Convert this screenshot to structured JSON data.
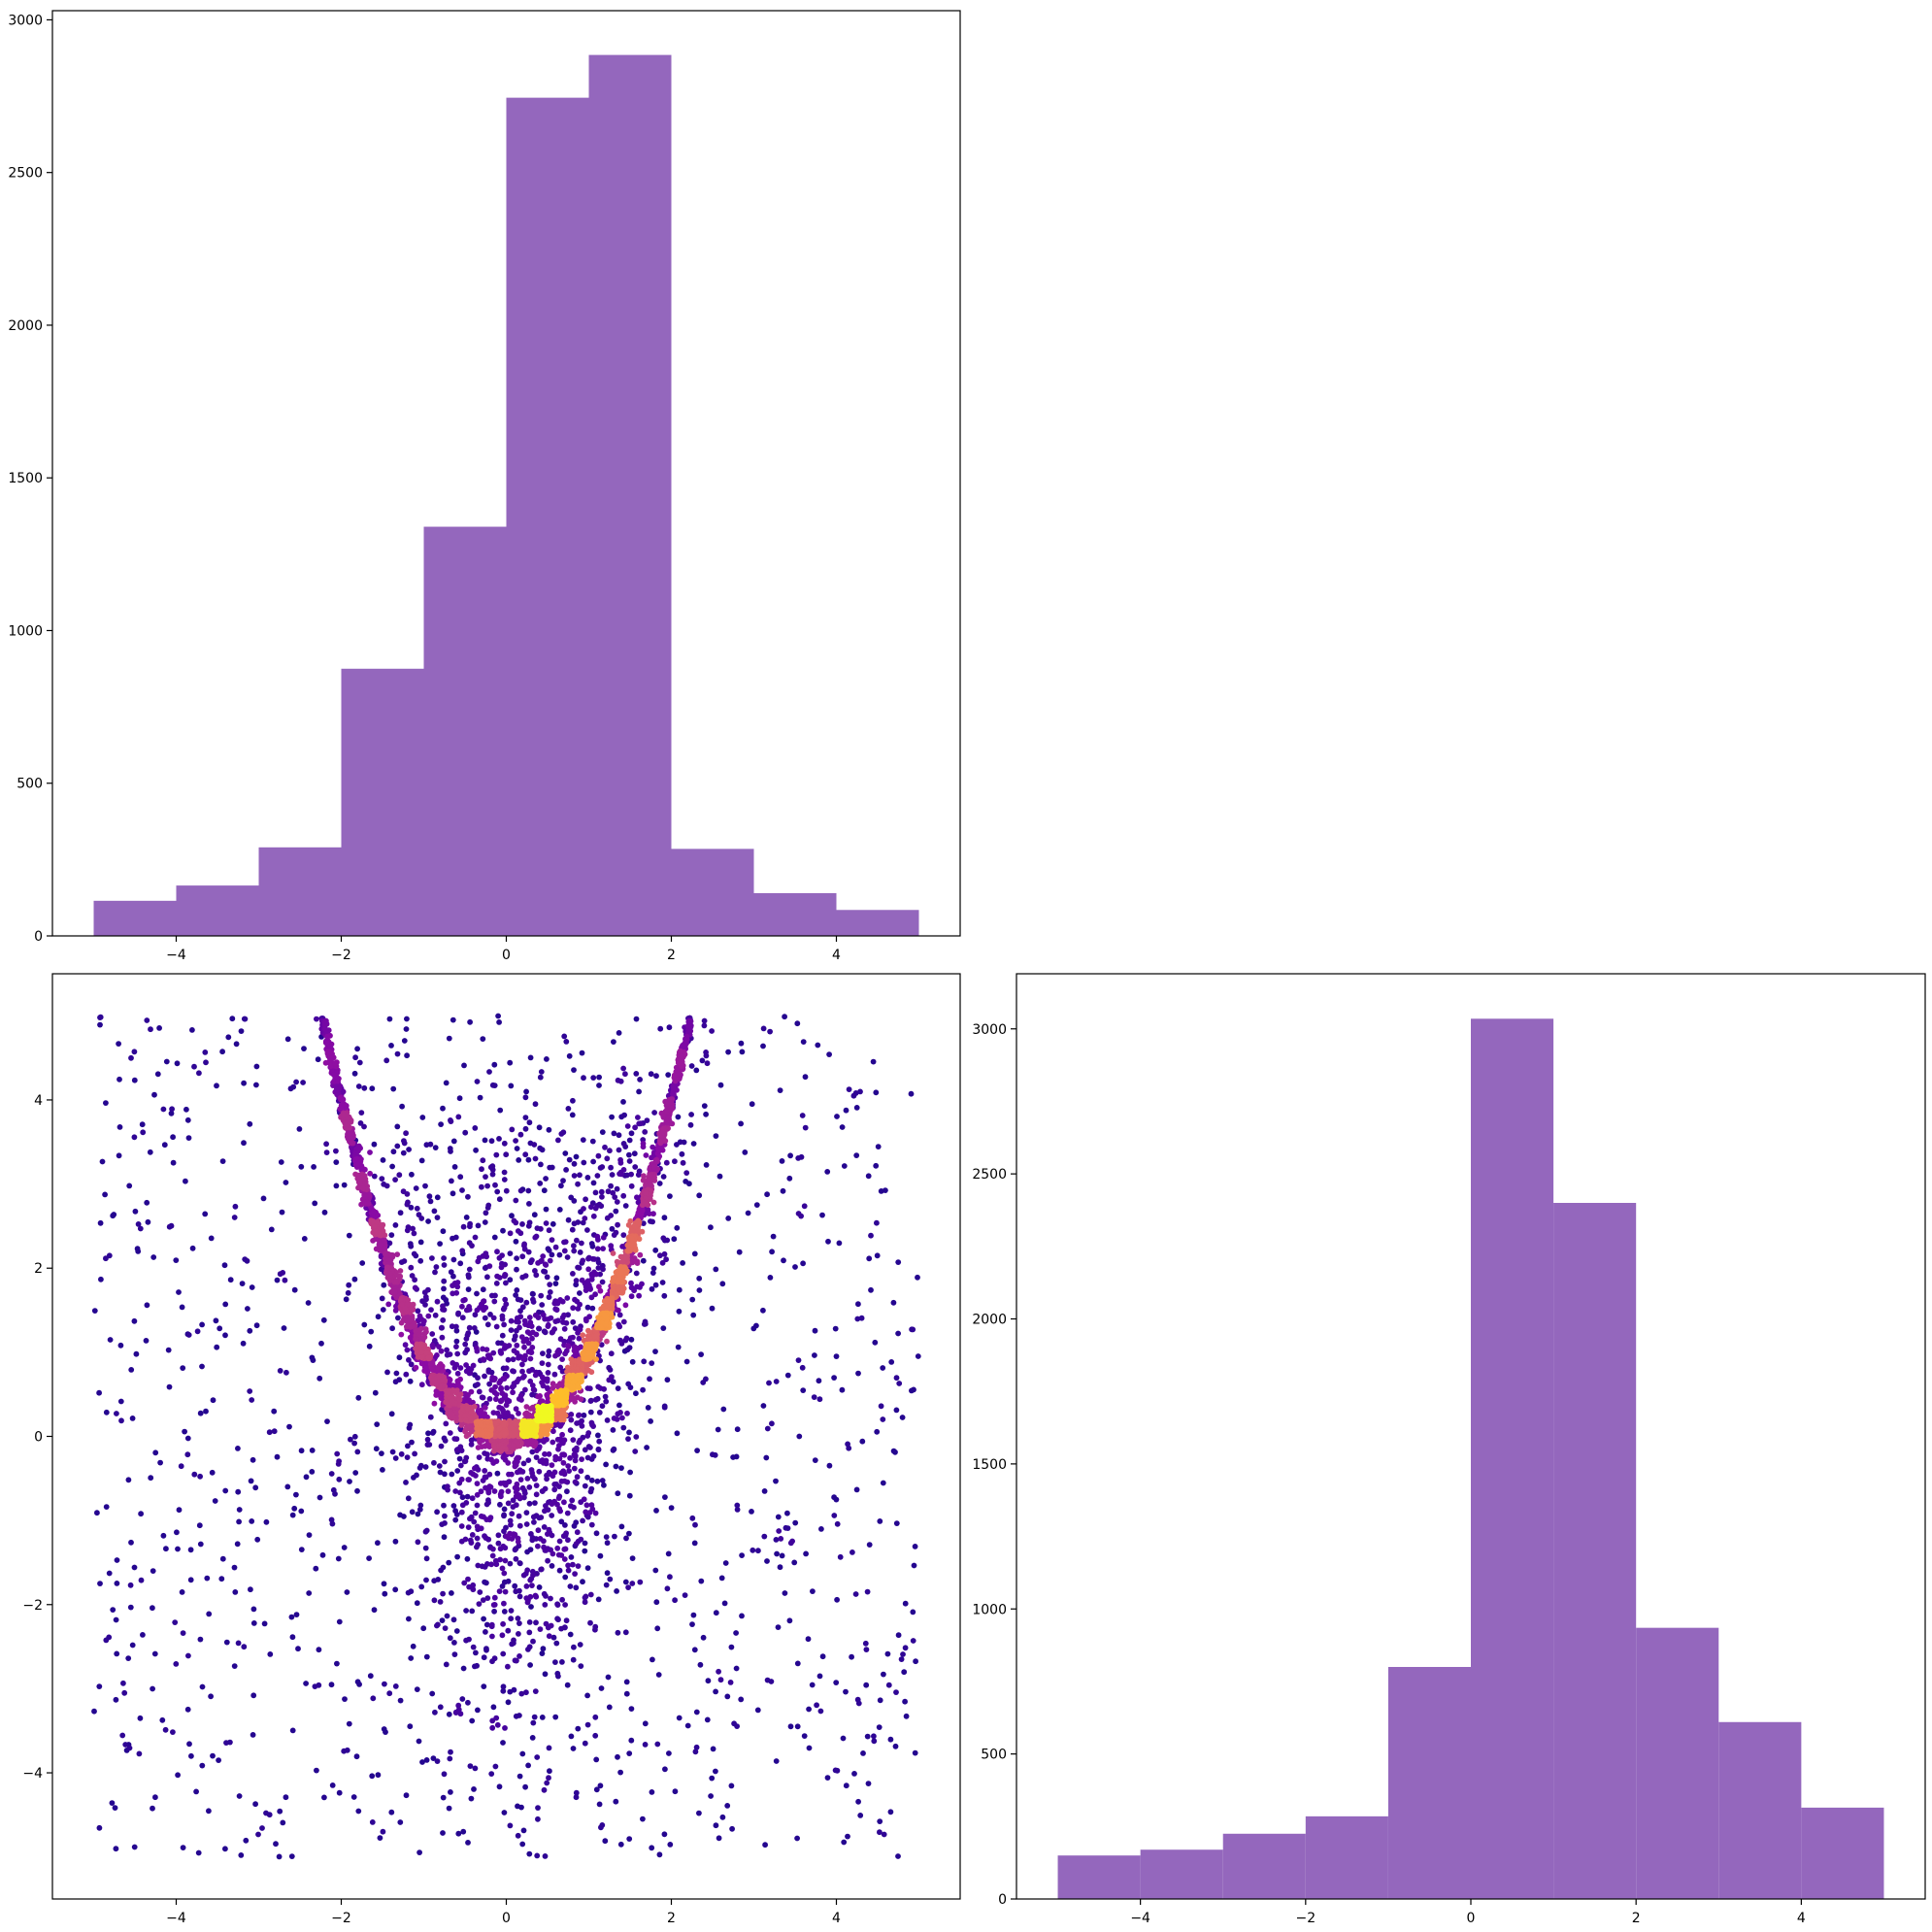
{
  "chart_data": [
    {
      "panel": "top-left",
      "type": "bar",
      "kind": "histogram",
      "bin_edges": [
        -5,
        -4,
        -3,
        -2,
        -1,
        0,
        1,
        2,
        3,
        4,
        5
      ],
      "values": [
        115,
        165,
        290,
        875,
        1340,
        2745,
        2885,
        285,
        140,
        85
      ],
      "bar_color": "#9467bd",
      "xlim": [
        -5.5,
        5.5
      ],
      "ylim": [
        0,
        3030
      ],
      "xticks": [
        -4,
        -2,
        0,
        2,
        4
      ],
      "xtick_labels": [
        "−4",
        "−2",
        "0",
        "2",
        "4"
      ],
      "yticks": [
        0,
        500,
        1000,
        1500,
        2000,
        2500,
        3000
      ],
      "ytick_labels": [
        "0",
        "500",
        "1000",
        "1500",
        "2000",
        "2500",
        "3000"
      ],
      "grid": false,
      "title": "",
      "xlabel": "",
      "ylabel": ""
    },
    {
      "panel": "bottom-left",
      "type": "scatter",
      "description_of_density": "points colored by local density, plasma colormap",
      "generator": {
        "curve": "y = x^2",
        "curve_x_range": [
          -2.24,
          2.24
        ],
        "seed": 7
      },
      "colormap": [
        "#0d0887",
        "#5302a3",
        "#8b0aa5",
        "#b83289",
        "#db5c68",
        "#f48849",
        "#febd2a",
        "#f0f921"
      ],
      "xlim": [
        -5.5,
        5.5
      ],
      "ylim": [
        -5.5,
        5.5
      ],
      "xticks": [
        -4,
        -2,
        0,
        2,
        4
      ],
      "xtick_labels": [
        "−4",
        "−2",
        "0",
        "2",
        "4"
      ],
      "yticks": [
        -4,
        -2,
        0,
        2,
        4
      ],
      "ytick_labels": [
        "−4",
        "−2",
        "0",
        "2",
        "4"
      ],
      "grid": false,
      "title": "",
      "xlabel": "",
      "ylabel": ""
    },
    {
      "panel": "bottom-right",
      "type": "bar",
      "kind": "histogram",
      "bin_edges": [
        -5,
        -4,
        -3,
        -2,
        -1,
        0,
        1,
        2,
        3,
        4,
        5
      ],
      "values": [
        150,
        170,
        225,
        285,
        800,
        3035,
        2400,
        935,
        610,
        315
      ],
      "bar_color": "#9467bd",
      "xlim": [
        -5.5,
        5.5
      ],
      "ylim": [
        0,
        3190
      ],
      "xticks": [
        -4,
        -2,
        0,
        2,
        4
      ],
      "xtick_labels": [
        "−4",
        "−2",
        "0",
        "2",
        "4"
      ],
      "yticks": [
        0,
        500,
        1000,
        1500,
        2000,
        2500,
        3000
      ],
      "ytick_labels": [
        "0",
        "500",
        "1000",
        "1500",
        "2000",
        "2500",
        "3000"
      ],
      "grid": false,
      "title": "",
      "xlabel": "",
      "ylabel": ""
    }
  ]
}
